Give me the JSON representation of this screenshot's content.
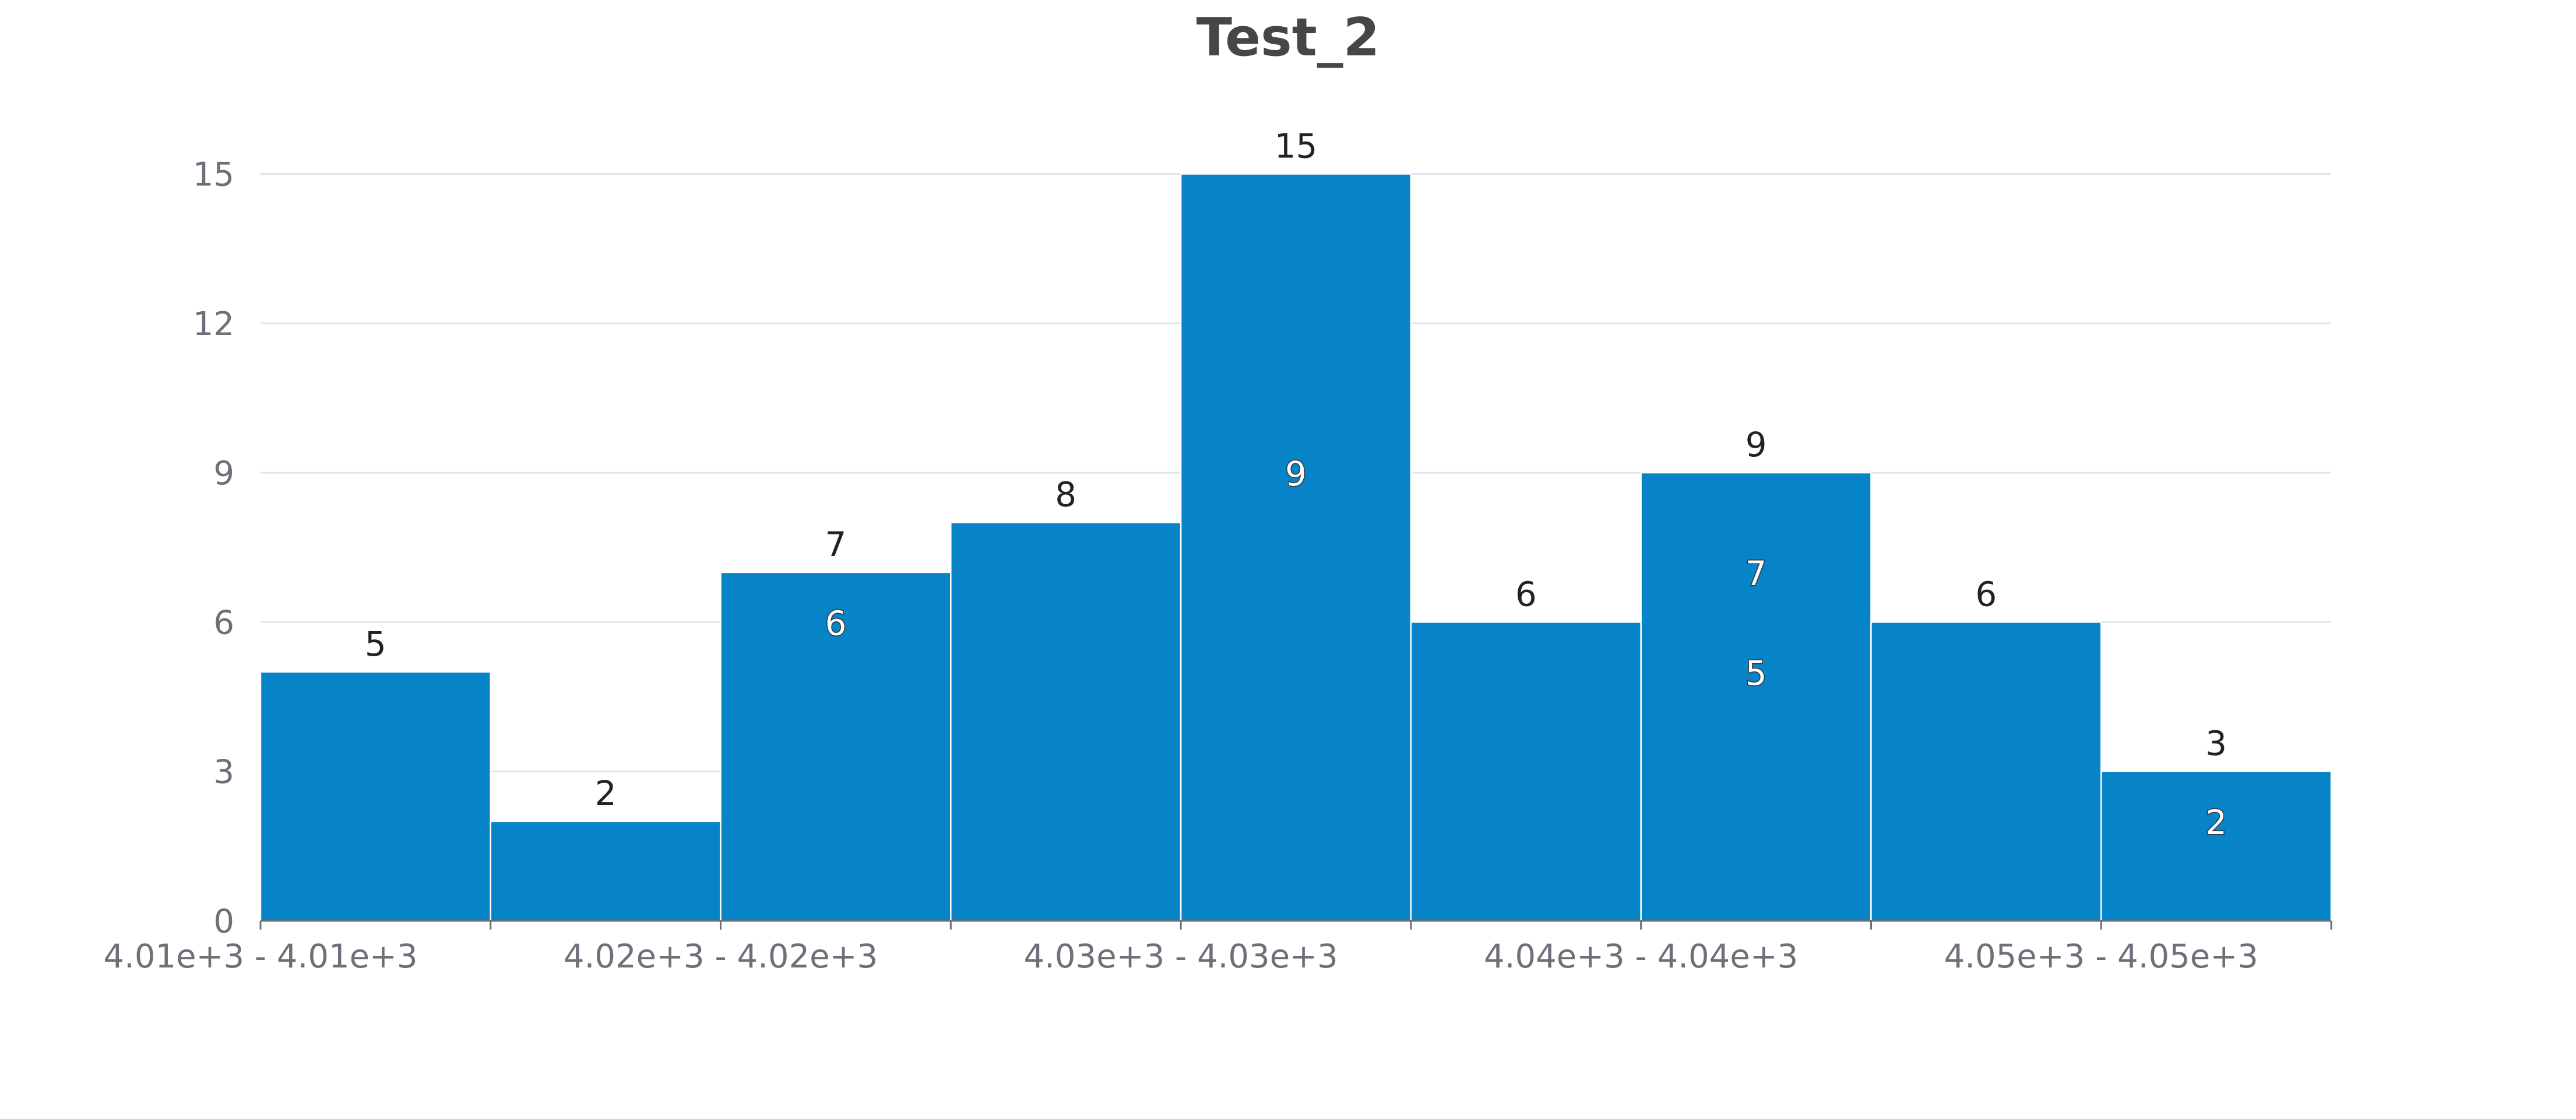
{
  "chart_data": {
    "type": "bar",
    "title": "Test_2",
    "xlabel": "",
    "ylabel": "",
    "ylim": [
      0,
      16
    ],
    "yticks": [
      0,
      3,
      6,
      9,
      12,
      15
    ],
    "grid": true,
    "legend": "none",
    "bar_color": "#0684c7",
    "categories": [
      "4.01e+3 - 4.01e+3",
      "",
      "4.02e+3 - 4.02e+3",
      "",
      "4.03e+3 - 4.03e+3",
      "",
      "4.04e+3 - 4.04e+3",
      "",
      "4.05e+3 - 4.05e+3"
    ],
    "values": [
      5,
      2,
      7,
      8,
      15,
      6,
      9,
      6,
      3
    ],
    "inner_labels": [
      {
        "bin": 2,
        "value": 6
      },
      {
        "bin": 4,
        "value": 9
      },
      {
        "bin": 6,
        "value": 7
      },
      {
        "bin": 6,
        "value": 5
      },
      {
        "bin": 8,
        "value": 2
      }
    ]
  }
}
